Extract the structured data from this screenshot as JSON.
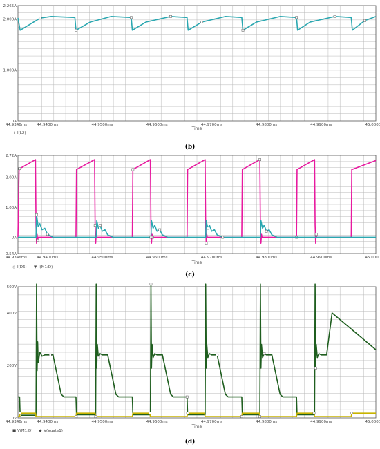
{
  "chart_data": [
    {
      "type": "line",
      "caption": "(b)",
      "xlabel": "Time",
      "x_ticks": [
        "44.9346ms",
        "44.9400ms",
        "44.9500ms",
        "44.9600ms",
        "44.9700ms",
        "44.9800ms",
        "44.9900ms",
        "45.0000ms"
      ],
      "y_ticks": [
        "0A",
        "1.000A",
        "2.000A",
        "2.265A"
      ],
      "xlim": [
        44.9346,
        45.0
      ],
      "ylim": [
        0,
        2.265
      ],
      "grid": true,
      "legend": [
        {
          "marker": "+",
          "label": "I(L2)",
          "color": "#2aa7b0"
        }
      ],
      "series": [
        {
          "color": "#2aa7b0",
          "x": [
            44.9346,
            44.935,
            44.9387,
            44.9407,
            44.945,
            44.9452,
            44.9478,
            44.9516,
            44.9553,
            44.9555,
            44.958,
            44.9625,
            44.9655,
            44.9657,
            44.9682,
            44.9725,
            44.9755,
            44.9757,
            44.9782,
            44.9825,
            44.9855,
            44.9857,
            44.988,
            44.9925,
            44.9955,
            44.9957,
            44.998,
            45.0
          ],
          "y": [
            2.02,
            1.78,
            2.02,
            2.05,
            2.03,
            1.78,
            1.94,
            2.05,
            2.03,
            1.78,
            1.94,
            2.05,
            2.03,
            1.78,
            1.94,
            2.05,
            2.03,
            1.78,
            1.94,
            2.05,
            2.03,
            1.78,
            1.94,
            2.05,
            2.03,
            1.78,
            1.97,
            2.05
          ]
        }
      ]
    },
    {
      "type": "line",
      "caption": "(c)",
      "xlabel": "Time",
      "x_ticks": [
        "44.9346ms",
        "44.9400ms",
        "44.9500ms",
        "44.9600ms",
        "44.9700ms",
        "44.9800ms",
        "44.9900ms",
        "45.0000ms"
      ],
      "y_ticks": [
        "-0.54A",
        "0A",
        "1.00A",
        "2.00A",
        "2.72A"
      ],
      "xlim": [
        44.9346,
        45.0
      ],
      "ylim": [
        -0.54,
        2.72
      ],
      "grid": true,
      "legend": [
        {
          "marker": "◇",
          "label": "I(D6)",
          "color": "#2aa7b0"
        },
        {
          "marker": "▼",
          "label": "I(M1:D)",
          "color": "#e8199f"
        }
      ],
      "series": [
        {
          "color": "#e8199f",
          "x": [
            44.9346,
            44.9348,
            44.9349,
            44.9378,
            44.9379,
            44.938,
            44.9381,
            44.9382,
            44.9383,
            44.9452,
            44.9453,
            44.9486,
            44.9487,
            44.9488,
            44.9489,
            44.949,
            44.9555,
            44.9556,
            44.9588,
            44.9589,
            44.959,
            44.9591,
            44.9592,
            44.9655,
            44.9656,
            44.9688,
            44.9689,
            44.969,
            44.9691,
            44.9692,
            44.9755,
            44.9756,
            44.9788,
            44.9789,
            44.979,
            44.9791,
            44.9792,
            44.9855,
            44.9856,
            44.9888,
            44.9889,
            44.989,
            44.9891,
            44.9892,
            44.9955,
            44.9956,
            45.0
          ],
          "y": [
            0,
            2.22,
            2.28,
            2.58,
            0.4,
            -0.2,
            0.1,
            -0.1,
            0,
            0,
            2.25,
            2.58,
            0.4,
            -0.2,
            0.1,
            0,
            0,
            2.25,
            2.58,
            0.4,
            -0.2,
            0.1,
            0,
            0,
            2.25,
            2.58,
            0.4,
            -0.2,
            0.1,
            0,
            0,
            2.25,
            2.58,
            0.4,
            -0.2,
            0.1,
            0,
            0,
            2.25,
            2.58,
            0.4,
            -0.2,
            0.1,
            0,
            0,
            2.25,
            2.55
          ]
        },
        {
          "color": "#2aa7b0",
          "x": [
            44.9346,
            44.9379,
            44.938,
            44.9383,
            44.9386,
            44.939,
            44.9395,
            44.94,
            44.941,
            44.9489,
            44.949,
            44.9493,
            44.9496,
            44.95,
            44.9505,
            44.951,
            44.952,
            44.9589,
            44.959,
            44.9593,
            44.9596,
            44.96,
            44.9605,
            44.961,
            44.962,
            44.9689,
            44.969,
            44.9693,
            44.9696,
            44.97,
            44.9705,
            44.971,
            44.972,
            44.9789,
            44.979,
            44.9793,
            44.9796,
            44.98,
            44.9805,
            44.981,
            44.982,
            45.0
          ],
          "y": [
            0,
            0,
            0.75,
            0.35,
            0.45,
            0.25,
            0.3,
            0.1,
            0,
            0,
            0.55,
            0.3,
            0.4,
            0.2,
            0.25,
            0.08,
            0,
            0,
            0.55,
            0.3,
            0.4,
            0.2,
            0.25,
            0.08,
            0,
            0,
            0.55,
            0.3,
            0.4,
            0.2,
            0.25,
            0.08,
            0,
            0,
            0.55,
            0.3,
            0.4,
            0.2,
            0.25,
            0.08,
            0,
            0
          ]
        }
      ]
    },
    {
      "type": "line",
      "caption": "(d)",
      "xlabel": "Time",
      "x_ticks": [
        "44.9346ms",
        "44.9400ms",
        "44.9500ms",
        "44.9600ms",
        "44.9700ms",
        "44.9800ms",
        "44.9900ms",
        "45.0000ms"
      ],
      "y_ticks": [
        "0V",
        "200V",
        "400V",
        "500V"
      ],
      "xlim": [
        44.9346,
        45.0
      ],
      "ylim": [
        0,
        500
      ],
      "grid": true,
      "legend": [
        {
          "marker": "■",
          "label": "V(M1:D)",
          "color": "#1f5e1f"
        },
        {
          "marker": "◆",
          "label": "V(Vgate1)",
          "color": "#c8b400"
        }
      ],
      "series": [
        {
          "color": "#1f5e1f",
          "x": [
            44.9346,
            44.9349,
            44.935,
            44.9379,
            44.938,
            44.9381,
            44.9382,
            44.9383,
            44.9386,
            44.939,
            44.9395,
            44.94,
            44.9405,
            44.941,
            44.9425,
            44.943,
            44.9452,
            44.9453,
            44.9488,
            44.9489,
            44.949,
            44.9491,
            44.9493,
            44.9496,
            44.95,
            44.9505,
            44.951,
            44.9525,
            44.953,
            44.9555,
            44.9556,
            44.9588,
            44.9589,
            44.959,
            44.9591,
            44.9593,
            44.9596,
            44.96,
            44.9605,
            44.961,
            44.9625,
            44.963,
            44.9655,
            44.9656,
            44.9688,
            44.9689,
            44.969,
            44.9691,
            44.9693,
            44.9696,
            44.97,
            44.9705,
            44.971,
            44.9725,
            44.973,
            44.9755,
            44.9756,
            44.9788,
            44.9789,
            44.979,
            44.9791,
            44.9793,
            44.9796,
            44.98,
            44.9805,
            44.981,
            44.9825,
            44.983,
            44.9855,
            44.9856,
            44.9888,
            44.9889,
            44.989,
            44.9891,
            44.9893,
            44.9896,
            44.99,
            44.9905,
            44.991,
            44.992,
            45.0
          ],
          "y": [
            80,
            80,
            10,
            10,
            510,
            180,
            290,
            210,
            250,
            235,
            240,
            240,
            240,
            240,
            90,
            80,
            80,
            12,
            12,
            510,
            190,
            280,
            230,
            245,
            240,
            240,
            240,
            90,
            80,
            80,
            12,
            12,
            510,
            190,
            280,
            230,
            245,
            240,
            240,
            240,
            90,
            80,
            80,
            12,
            12,
            510,
            190,
            280,
            230,
            245,
            240,
            240,
            240,
            90,
            80,
            80,
            12,
            12,
            510,
            190,
            280,
            230,
            245,
            240,
            240,
            240,
            90,
            80,
            80,
            12,
            12,
            510,
            190,
            280,
            230,
            245,
            240,
            240,
            240,
            400,
            260
          ]
        },
        {
          "color": "#c8b400",
          "x": [
            44.9346,
            44.9349,
            44.935,
            44.9378,
            44.9379,
            44.9452,
            44.9453,
            44.9487,
            44.9488,
            44.9555,
            44.9556,
            44.9587,
            44.9588,
            44.9655,
            44.9656,
            44.9687,
            44.9688,
            44.9755,
            44.9756,
            44.9787,
            44.9788,
            44.9855,
            44.9856,
            44.9887,
            44.9888,
            44.9955,
            44.9956,
            45.0
          ],
          "y": [
            5,
            5,
            18,
            18,
            5,
            5,
            18,
            18,
            5,
            5,
            18,
            18,
            5,
            5,
            18,
            18,
            5,
            5,
            18,
            18,
            5,
            5,
            18,
            18,
            5,
            5,
            18,
            18
          ]
        }
      ]
    }
  ]
}
